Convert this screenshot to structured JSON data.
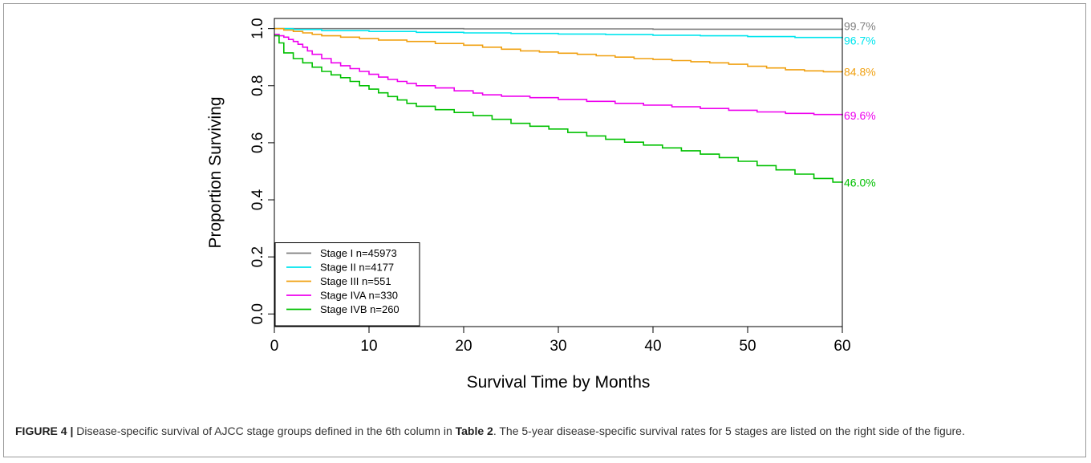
{
  "chart_data": {
    "type": "line",
    "xlabel": "Survival Time by Months",
    "ylabel": "Proportion Surviving",
    "xlim": [
      0,
      60
    ],
    "ylim": [
      0.0,
      1.0
    ],
    "x_ticks": [
      "0",
      "10",
      "20",
      "30",
      "40",
      "50",
      "60"
    ],
    "y_ticks": [
      "0.0",
      "0.2",
      "0.4",
      "0.6",
      "0.8",
      "1.0"
    ],
    "step": true,
    "legend_position": "bottom-left",
    "series": [
      {
        "name": "Stage I n=45973",
        "color": "#7f7f7f",
        "end_label": "99.7%",
        "x": [
          0,
          20,
          40,
          60
        ],
        "y": [
          1.0,
          0.999,
          0.998,
          0.997
        ]
      },
      {
        "name": "Stage II n=4177",
        "color": "#00e5ee",
        "end_label": "96.7%",
        "x": [
          0,
          2,
          5,
          10,
          15,
          20,
          25,
          30,
          35,
          40,
          45,
          50,
          55,
          60
        ],
        "y": [
          1.0,
          0.997,
          0.993,
          0.99,
          0.987,
          0.985,
          0.983,
          0.981,
          0.979,
          0.977,
          0.975,
          0.972,
          0.969,
          0.967
        ]
      },
      {
        "name": "Stage III n=551",
        "color": "#f0a010",
        "end_label": "84.8%",
        "x": [
          0,
          1,
          2,
          3,
          4,
          5,
          7,
          9,
          11,
          14,
          17,
          20,
          22,
          24,
          26,
          28,
          30,
          32,
          34,
          36,
          38,
          40,
          42,
          44,
          46,
          48,
          50,
          52,
          54,
          56,
          58,
          60
        ],
        "y": [
          1.0,
          0.995,
          0.99,
          0.985,
          0.98,
          0.975,
          0.97,
          0.965,
          0.96,
          0.955,
          0.948,
          0.942,
          0.935,
          0.928,
          0.922,
          0.918,
          0.914,
          0.91,
          0.905,
          0.9,
          0.895,
          0.892,
          0.888,
          0.884,
          0.88,
          0.875,
          0.868,
          0.862,
          0.856,
          0.852,
          0.849,
          0.848
        ]
      },
      {
        "name": "Stage IVA n=330",
        "color": "#ee00ee",
        "end_label": "69.6%",
        "x": [
          0,
          0.5,
          1,
          1.5,
          2,
          2.5,
          3,
          3.5,
          4,
          5,
          6,
          7,
          8,
          9,
          10,
          11,
          12,
          13,
          14,
          15,
          17,
          19,
          21,
          22,
          24,
          27,
          30,
          33,
          36,
          39,
          42,
          45,
          48,
          51,
          54,
          57,
          60
        ],
        "y": [
          0.98,
          0.975,
          0.97,
          0.962,
          0.955,
          0.945,
          0.935,
          0.922,
          0.91,
          0.895,
          0.88,
          0.87,
          0.86,
          0.85,
          0.84,
          0.83,
          0.822,
          0.815,
          0.808,
          0.8,
          0.792,
          0.782,
          0.774,
          0.768,
          0.763,
          0.758,
          0.752,
          0.745,
          0.738,
          0.732,
          0.726,
          0.72,
          0.714,
          0.708,
          0.703,
          0.699,
          0.696
        ]
      },
      {
        "name": "Stage IVB n=260",
        "color": "#00c000",
        "end_label": "46.0%",
        "x": [
          0,
          0.5,
          1,
          2,
          3,
          4,
          5,
          6,
          7,
          8,
          9,
          10,
          11,
          12,
          13,
          14,
          15,
          17,
          19,
          21,
          23,
          25,
          27,
          29,
          31,
          33,
          35,
          37,
          39,
          41,
          43,
          45,
          47,
          49,
          51,
          53,
          55,
          57,
          59,
          60
        ],
        "y": [
          0.975,
          0.95,
          0.915,
          0.895,
          0.88,
          0.865,
          0.85,
          0.838,
          0.828,
          0.815,
          0.8,
          0.788,
          0.775,
          0.762,
          0.75,
          0.738,
          0.728,
          0.716,
          0.706,
          0.695,
          0.682,
          0.668,
          0.658,
          0.648,
          0.636,
          0.624,
          0.612,
          0.602,
          0.592,
          0.582,
          0.572,
          0.56,
          0.548,
          0.535,
          0.52,
          0.505,
          0.49,
          0.475,
          0.462,
          0.46
        ]
      }
    ]
  },
  "caption": {
    "label": "FIGURE 4 |",
    "text_before": " Disease-specific survival of AJCC stage groups defined in the 6th column in ",
    "table_ref": "Table 2",
    "text_after": ". The 5-year disease-specific survival rates for 5 stages are listed on the right side of the figure."
  }
}
